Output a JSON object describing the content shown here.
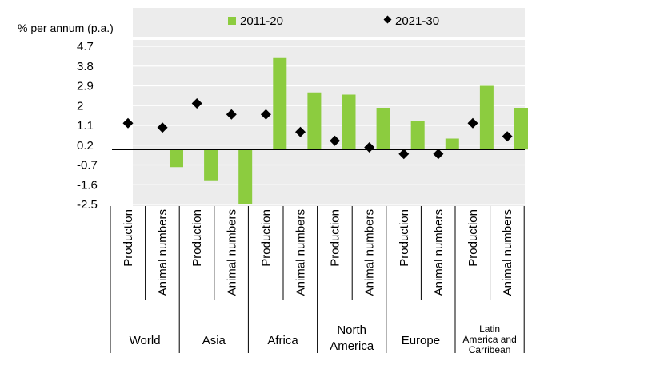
{
  "chart_data": {
    "type": "bar",
    "ylabel": "% per annum (p.a.)",
    "yticks": [
      "4.7",
      "3.8",
      "2.9",
      "2",
      "1.1",
      "0.2",
      "-0.7",
      "-1.6",
      "-2.5"
    ],
    "ylim": [
      -2.5,
      4.7
    ],
    "grid": true,
    "legend_position": "top",
    "groups": [
      {
        "name": "World",
        "categories": [
          "Production",
          "Animal numbers"
        ]
      },
      {
        "name": "Asia",
        "categories": [
          "Production",
          "Animal numbers"
        ]
      },
      {
        "name": "Africa",
        "categories": [
          "Production",
          "Animal numbers"
        ]
      },
      {
        "name": "North America",
        "categories": [
          "Production",
          "Animal numbers"
        ]
      },
      {
        "name": "Europe",
        "categories": [
          "Production",
          "Animal numbers"
        ]
      },
      {
        "name": "Latin America and Carribean",
        "categories": [
          "Production",
          "Animal numbers"
        ]
      }
    ],
    "categories": [
      "Production",
      "Animal numbers",
      "Production",
      "Animal numbers",
      "Production",
      "Animal numbers",
      "Production",
      "Animal numbers",
      "Production",
      "Animal numbers",
      "Production",
      "Animal numbers"
    ],
    "series": [
      {
        "name": "2011-20",
        "type": "bar",
        "color": "#8ccc3f",
        "values": [
          0.0,
          -0.8,
          -1.4,
          -2.5,
          4.2,
          2.6,
          2.5,
          1.9,
          1.3,
          0.5,
          2.9,
          1.9
        ]
      },
      {
        "name": "2021-30",
        "type": "marker",
        "color": "#000000",
        "values": [
          1.2,
          1.0,
          2.1,
          1.6,
          1.6,
          0.8,
          0.4,
          0.1,
          -0.2,
          -0.2,
          1.2,
          0.6
        ]
      }
    ]
  }
}
